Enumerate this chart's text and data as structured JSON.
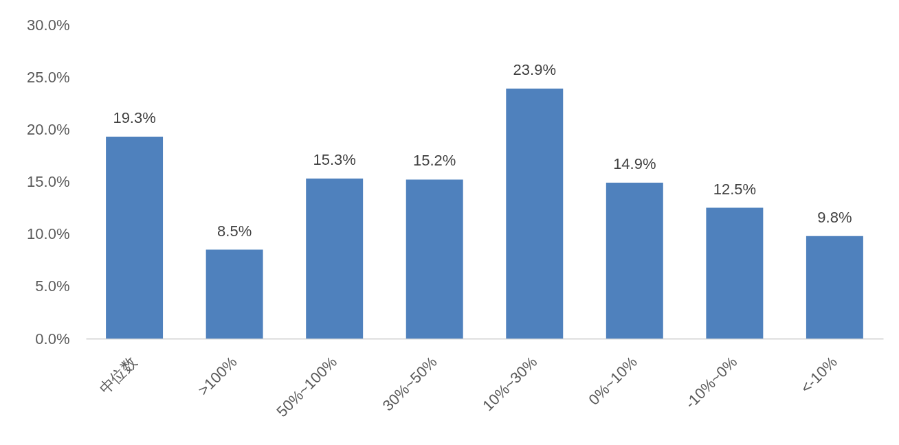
{
  "chart_data": {
    "type": "bar",
    "categories": [
      "中位数",
      ">100%",
      "50%~100%",
      "30%~50%",
      "10%~30%",
      "0%~10%",
      "-10%~0%",
      "<-10%"
    ],
    "values": [
      19.3,
      8.5,
      15.3,
      15.2,
      23.9,
      14.9,
      12.5,
      9.8
    ],
    "value_labels": [
      "19.3%",
      "8.5%",
      "15.3%",
      "15.2%",
      "23.9%",
      "14.9%",
      "12.5%",
      "9.8%"
    ],
    "color": "#4f81bd",
    "ylim": [
      0,
      30
    ],
    "yticks": [
      {
        "value": 0,
        "label": "0.0%"
      },
      {
        "value": 5,
        "label": "5.0%"
      },
      {
        "value": 10,
        "label": "10.0%"
      },
      {
        "value": 15,
        "label": "15.0%"
      },
      {
        "value": 20,
        "label": "20.0%"
      },
      {
        "value": 25,
        "label": "25.0%"
      },
      {
        "value": 30,
        "label": "30.0%"
      }
    ]
  }
}
